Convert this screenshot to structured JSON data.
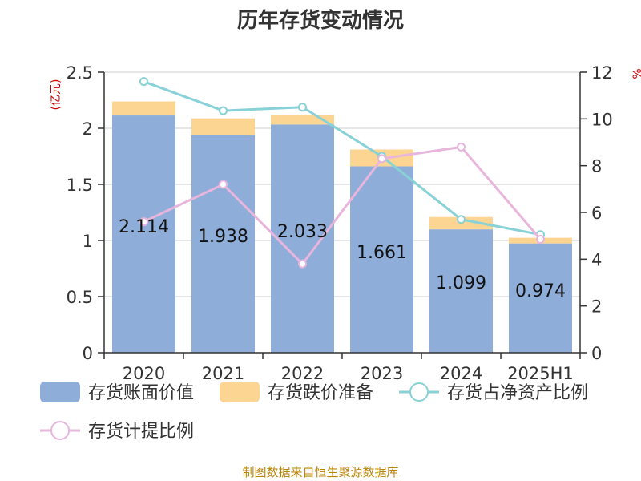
{
  "title": "历年存货变动情况",
  "left_unit": "(亿元)",
  "right_unit": "%",
  "source": "制图数据来自恒生聚源数据库",
  "colors": {
    "book_value": "#8eadd9",
    "reserve": "#fdd593",
    "ratio_net_assets": "#88d1d6",
    "provision_ratio": "#e8b5dc",
    "axis": "#333333",
    "grid": "#cccccc"
  },
  "legend": [
    {
      "label": "存货账面价值",
      "type": "box",
      "color_key": "book_value"
    },
    {
      "label": "存货跌价准备",
      "type": "box",
      "color_key": "reserve"
    },
    {
      "label": "存货占净资产比例",
      "type": "line",
      "color_key": "ratio_net_assets"
    },
    {
      "label": "存货计提比例",
      "type": "line",
      "color_key": "provision_ratio"
    }
  ],
  "chart_data": {
    "type": "bar",
    "stacked": true,
    "categories": [
      "2020",
      "2021",
      "2022",
      "2023",
      "2024",
      "2025H1"
    ],
    "left_axis": {
      "min": 0,
      "max": 2.5,
      "ticks": [
        "0",
        "0.5",
        "1",
        "1.5",
        "2",
        "2.5"
      ]
    },
    "right_axis": {
      "min": 0,
      "max": 12,
      "ticks": [
        "0",
        "2",
        "4",
        "6",
        "8",
        "10",
        "12"
      ]
    },
    "series": [
      {
        "name": "存货账面价值",
        "kind": "bar",
        "axis": "left",
        "values": [
          2.114,
          1.938,
          2.033,
          1.661,
          1.099,
          0.974
        ],
        "labels": [
          "2.114",
          "1.938",
          "2.033",
          "1.661",
          "1.099",
          "0.974"
        ]
      },
      {
        "name": "存货跌价准备",
        "kind": "bar",
        "axis": "left",
        "values": [
          0.125,
          0.15,
          0.085,
          0.15,
          0.11,
          0.05
        ]
      },
      {
        "name": "存货占净资产比例",
        "kind": "line",
        "axis": "right",
        "values": [
          11.6,
          10.35,
          10.5,
          8.4,
          5.7,
          5.05
        ]
      },
      {
        "name": "存货计提比例",
        "kind": "line",
        "axis": "right",
        "values": [
          5.6,
          7.2,
          3.8,
          8.3,
          8.8,
          4.85
        ]
      }
    ],
    "grid": true,
    "legend_position": "bottom"
  }
}
